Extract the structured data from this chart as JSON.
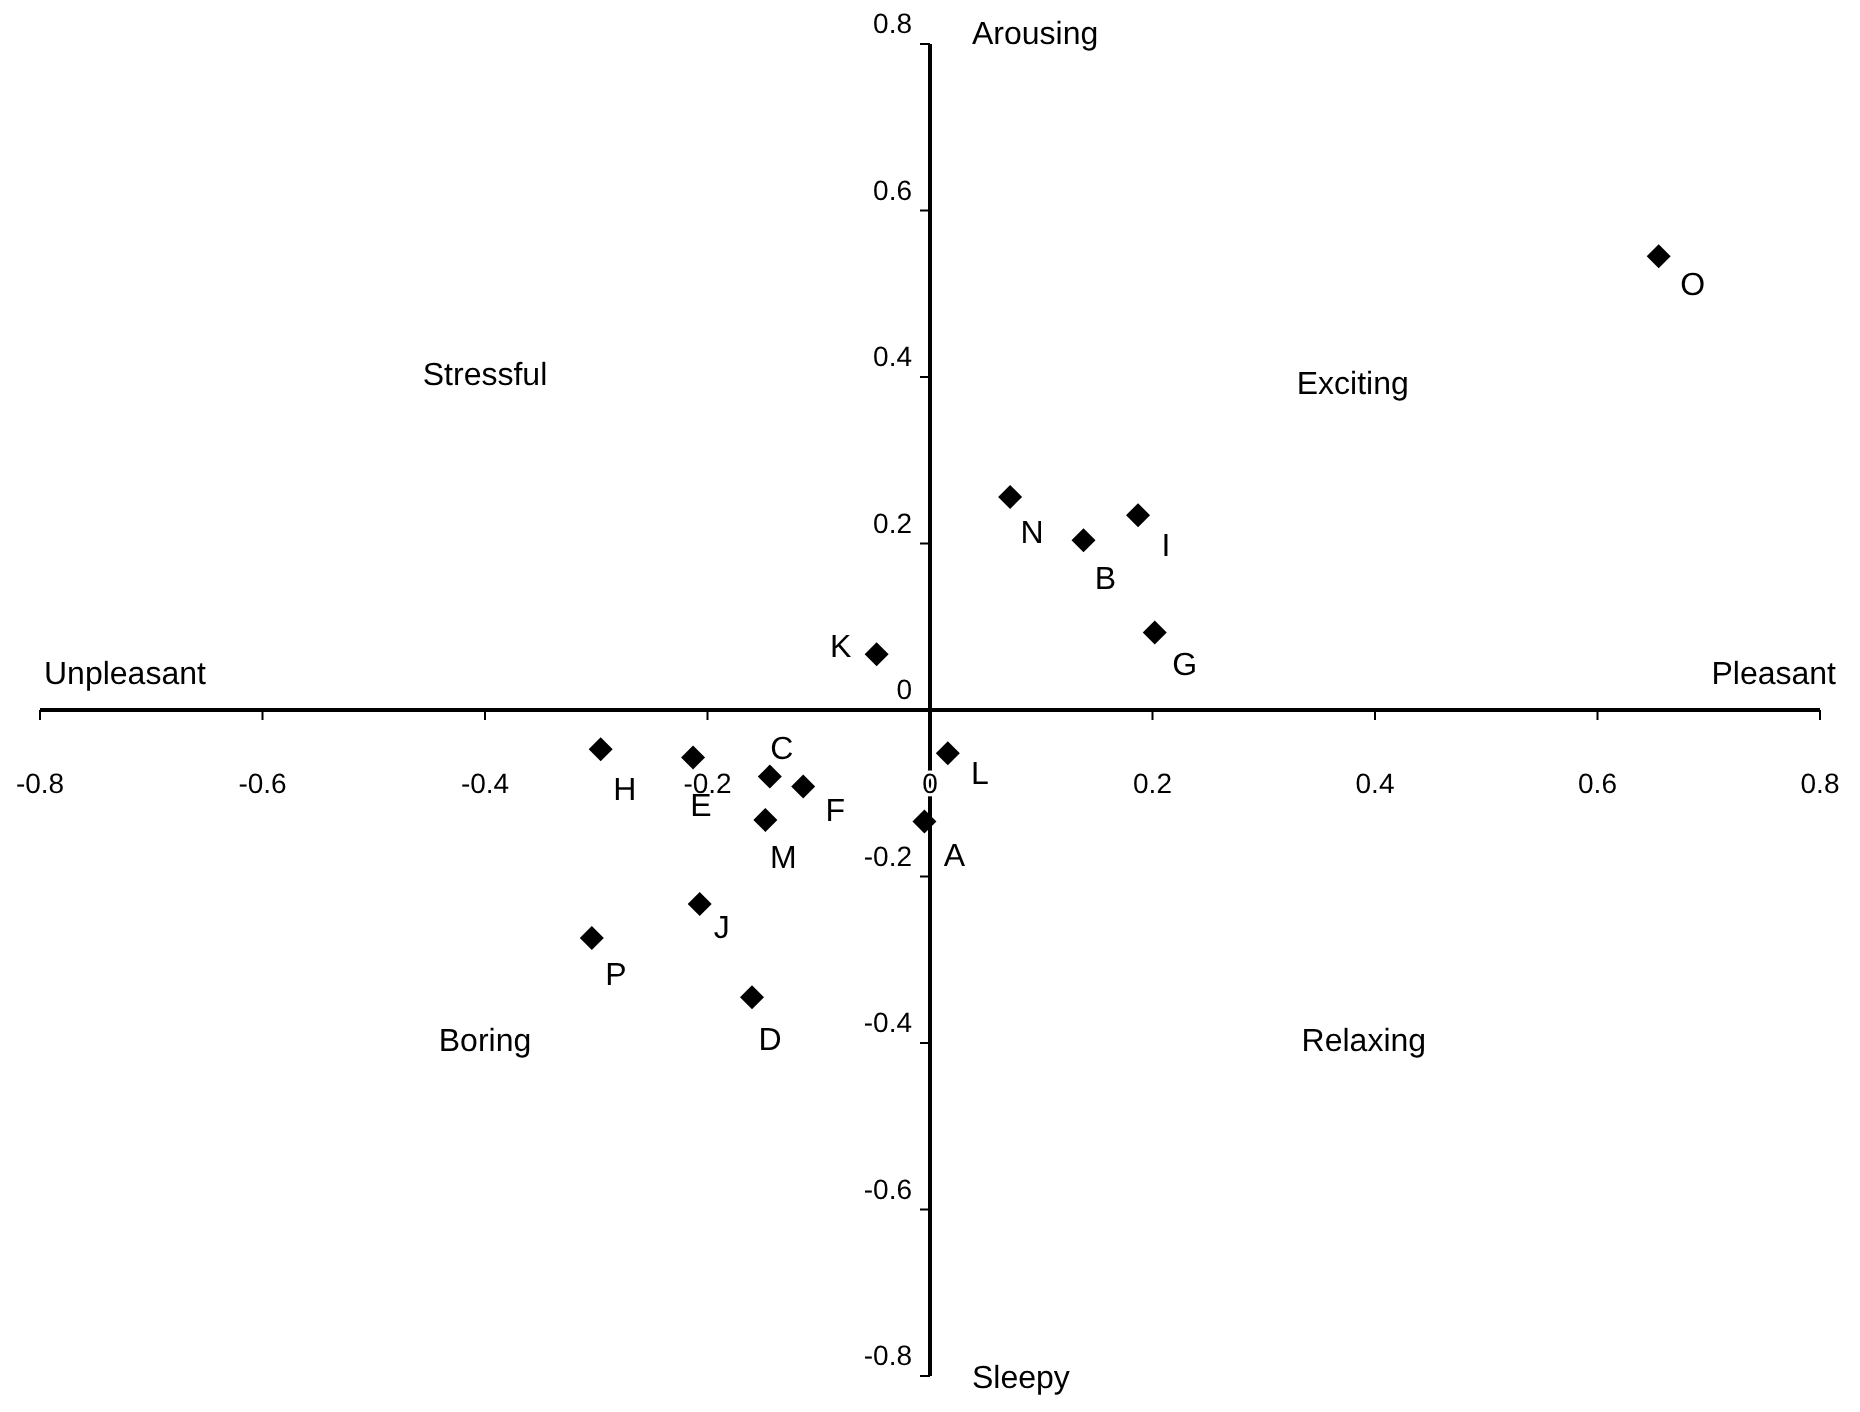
{
  "chart_data": {
    "type": "scatter",
    "color": "#000000",
    "marker": "diamond",
    "x": [
      -0.005,
      0.138,
      -0.144,
      -0.16,
      -0.213,
      -0.114,
      0.202,
      -0.296,
      0.187,
      -0.207,
      -0.048,
      0.016,
      -0.148,
      0.072,
      0.655,
      -0.304
    ],
    "values": [
      -0.134,
      0.204,
      -0.08,
      -0.345,
      -0.057,
      -0.092,
      0.093,
      -0.047,
      0.234,
      -0.233,
      0.067,
      -0.052,
      -0.132,
      0.256,
      0.545,
      -0.274
    ],
    "xlim": [
      -0.8,
      0.8
    ],
    "ylim": [
      -0.8,
      0.8
    ],
    "xticks": [
      -0.8,
      -0.6,
      -0.4,
      -0.2,
      0,
      0.2,
      0.4,
      0.6,
      0.8
    ],
    "yticks": [
      -0.8,
      -0.6,
      -0.4,
      -0.2,
      0,
      0.2,
      0.4,
      0.6,
      0.8
    ],
    "annotations": [
      "Arousing",
      "Sleepy",
      "Unpleasant",
      "Pleasant",
      "Stressful",
      "Exciting",
      "Boring",
      "Relaxing",
      {
        "text": "A",
        "x": -0.005,
        "y": -0.134
      },
      {
        "text": "B",
        "x": 0.138,
        "y": 0.204
      },
      {
        "text": "C",
        "x": -0.144,
        "y": -0.08
      },
      {
        "text": "D",
        "x": -0.16,
        "y": -0.345
      },
      {
        "text": "E",
        "x": -0.213,
        "y": -0.057
      },
      {
        "text": "F",
        "x": -0.114,
        "y": -0.092
      },
      {
        "text": "G",
        "x": 0.202,
        "y": 0.093
      },
      {
        "text": "H",
        "x": -0.296,
        "y": -0.047
      },
      {
        "text": "I",
        "x": 0.187,
        "y": 0.234
      },
      {
        "text": "J",
        "x": -0.207,
        "y": -0.233
      },
      {
        "text": "K",
        "x": -0.048,
        "y": 0.067
      },
      {
        "text": "L",
        "x": 0.016,
        "y": -0.052
      },
      {
        "text": "M",
        "x": -0.148,
        "y": -0.132
      },
      {
        "text": "N",
        "x": 0.072,
        "y": 0.256
      },
      {
        "text": "O",
        "x": 0.655,
        "y": 0.545
      },
      {
        "text": "P",
        "x": -0.304,
        "y": -0.274
      }
    ]
  }
}
